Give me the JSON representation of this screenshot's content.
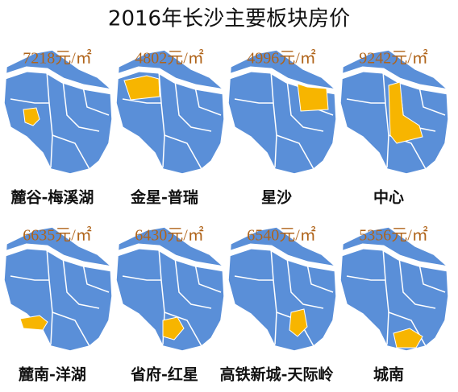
{
  "title": "2016年长沙主要板块房价",
  "panels": [
    {
      "price": "7218元/㎡",
      "name": "麓谷-梅溪湖"
    },
    {
      "price": "4802元/㎡",
      "name": "金星-普瑞"
    },
    {
      "price": "4996元/㎡",
      "name": "星沙"
    },
    {
      "price": "9242元/㎡",
      "name": "中心"
    },
    {
      "price": "6635元/㎡",
      "name": "麓南-洋湖"
    },
    {
      "price": "6430元/㎡",
      "name": "省府-红星"
    },
    {
      "price": "6540元/㎡",
      "name": "高铁新城-天际岭"
    },
    {
      "price": "5356元/㎡",
      "name": "城南"
    }
  ]
}
